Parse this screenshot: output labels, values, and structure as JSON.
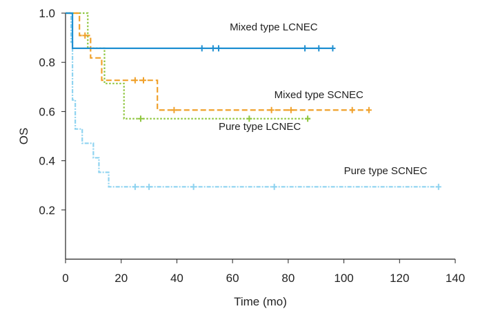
{
  "chart_data": {
    "type": "line",
    "subtype": "kaplan-meier",
    "xlabel": "Time (mo)",
    "ylabel": "OS",
    "xlim": [
      0,
      140
    ],
    "ylim": [
      0,
      1.0
    ],
    "xticks": [
      0,
      20,
      40,
      60,
      80,
      100,
      120,
      140
    ],
    "yticks": [
      0.2,
      0.4,
      0.6,
      0.8,
      1.0
    ],
    "xtick_labels": [
      "0",
      "20",
      "40",
      "60",
      "80",
      "100",
      "120",
      "140"
    ],
    "ytick_labels": [
      "0.2",
      "0.4",
      "0.6",
      "0.8",
      "1.0"
    ],
    "grid": false,
    "legend": "inline labels",
    "series": [
      {
        "name": "Mixed type LCNEC",
        "color": "#1f8fd1",
        "dash": "solid",
        "steps": [
          [
            0,
            1.0
          ],
          [
            2.5,
            0.857
          ],
          [
            96,
            0.857
          ]
        ],
        "censored": [
          49,
          53,
          55,
          86,
          91,
          96
        ]
      },
      {
        "name": "Mixed type SCNEC",
        "color": "#f0a12b",
        "dash": "dashed",
        "steps": [
          [
            0,
            1.0
          ],
          [
            5,
            0.909
          ],
          [
            9,
            0.818
          ],
          [
            13,
            0.727
          ],
          [
            33,
            0.606
          ],
          [
            109,
            0.606
          ]
        ],
        "censored": [
          7,
          25,
          28,
          39,
          74,
          81,
          103,
          109
        ]
      },
      {
        "name": "Pure type LCNEC",
        "color": "#8fc63f",
        "dash": "dotted",
        "steps": [
          [
            0,
            1.0
          ],
          [
            8,
            0.857
          ],
          [
            14,
            0.714
          ],
          [
            21,
            0.571
          ],
          [
            88,
            0.571
          ]
        ],
        "censored": [
          27,
          66,
          87
        ]
      },
      {
        "name": "Pure type SCNEC",
        "color": "#8ed3f0",
        "dash": "dashdot",
        "steps": [
          [
            0,
            1.0
          ],
          [
            2,
            0.882
          ],
          [
            2.5,
            0.647
          ],
          [
            3.5,
            0.529
          ],
          [
            6,
            0.471
          ],
          [
            10,
            0.412
          ],
          [
            12,
            0.353
          ],
          [
            15.5,
            0.294
          ],
          [
            134,
            0.294
          ]
        ],
        "censored": [
          25,
          30,
          46,
          75,
          134
        ]
      }
    ],
    "annotations": [
      {
        "text": "Mixed type LCNEC",
        "x": 59,
        "y": 0.93
      },
      {
        "text": "Mixed type SCNEC",
        "x": 75,
        "y": 0.655
      },
      {
        "text": "Pure type LCNEC",
        "x": 55,
        "y": 0.525
      },
      {
        "text": "Pure type SCNEC",
        "x": 100,
        "y": 0.345
      }
    ]
  }
}
